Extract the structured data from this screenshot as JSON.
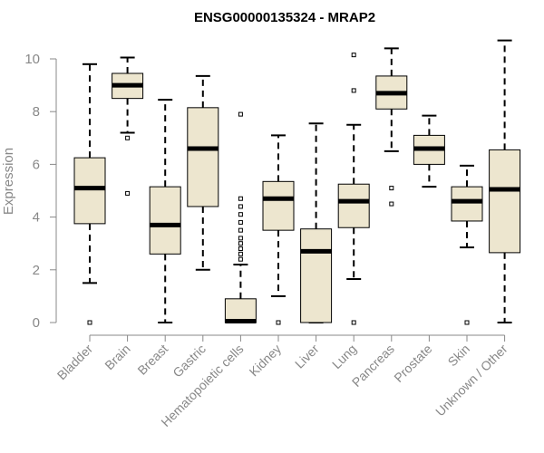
{
  "chart_data": {
    "type": "box",
    "title": "ENSG00000135324 - MRAP2",
    "xlabel": "",
    "ylabel": "Expression",
    "ylim": [
      0,
      10.8
    ],
    "yticks": [
      0,
      2,
      4,
      6,
      8,
      10
    ],
    "colors": {
      "box_fill": "#ede6cf",
      "box_stroke": "#000000",
      "axis": "#888888"
    },
    "categories": [
      "Bladder",
      "Brain",
      "Breast",
      "Gastric",
      "Hematopoietic cells",
      "Kidney",
      "Liver",
      "Lung",
      "Pancreas",
      "Prostate",
      "Skin",
      "Unknown / Other"
    ],
    "boxes": [
      {
        "name": "Bladder",
        "whisker_low": 1.5,
        "q1": 3.75,
        "median": 5.1,
        "q3": 6.25,
        "whisker_high": 9.8,
        "outliers": [
          0
        ]
      },
      {
        "name": "Brain",
        "whisker_low": 7.2,
        "q1": 8.5,
        "median": 9.0,
        "q3": 9.45,
        "whisker_high": 10.05,
        "outliers": [
          7.0,
          4.9
        ]
      },
      {
        "name": "Breast",
        "whisker_low": 0,
        "q1": 2.6,
        "median": 3.7,
        "q3": 5.15,
        "whisker_high": 8.45,
        "outliers": []
      },
      {
        "name": "Gastric",
        "whisker_low": 2.0,
        "q1": 4.4,
        "median": 6.6,
        "q3": 8.15,
        "whisker_high": 9.35,
        "outliers": []
      },
      {
        "name": "Hematopoietic cells",
        "whisker_low": 0,
        "q1": 0,
        "median": 0.05,
        "q3": 0.9,
        "whisker_high": 2.2,
        "outliers": [
          7.9,
          4.7,
          4.4,
          4.1,
          3.8,
          3.5,
          3.2,
          3.0,
          2.8,
          2.6,
          2.4
        ]
      },
      {
        "name": "Kidney",
        "whisker_low": 1.0,
        "q1": 3.5,
        "median": 4.7,
        "q3": 5.35,
        "whisker_high": 7.1,
        "outliers": [
          0
        ]
      },
      {
        "name": "Liver",
        "whisker_low": 0,
        "q1": 0,
        "median": 2.7,
        "q3": 3.55,
        "whisker_high": 7.55,
        "outliers": []
      },
      {
        "name": "Lung",
        "whisker_low": 1.65,
        "q1": 3.6,
        "median": 4.6,
        "q3": 5.25,
        "whisker_high": 7.5,
        "outliers": [
          10.15,
          8.8,
          0
        ]
      },
      {
        "name": "Pancreas",
        "whisker_low": 6.5,
        "q1": 8.1,
        "median": 8.7,
        "q3": 9.35,
        "whisker_high": 10.4,
        "outliers": [
          5.1,
          4.5
        ]
      },
      {
        "name": "Prostate",
        "whisker_low": 5.15,
        "q1": 6.0,
        "median": 6.6,
        "q3": 7.1,
        "whisker_high": 7.85,
        "outliers": []
      },
      {
        "name": "Skin",
        "whisker_low": 2.85,
        "q1": 3.85,
        "median": 4.6,
        "q3": 5.15,
        "whisker_high": 5.95,
        "outliers": [
          0
        ]
      },
      {
        "name": "Unknown / Other",
        "whisker_low": 0,
        "q1": 2.65,
        "median": 5.05,
        "q3": 6.55,
        "whisker_high": 10.7,
        "outliers": []
      }
    ]
  }
}
